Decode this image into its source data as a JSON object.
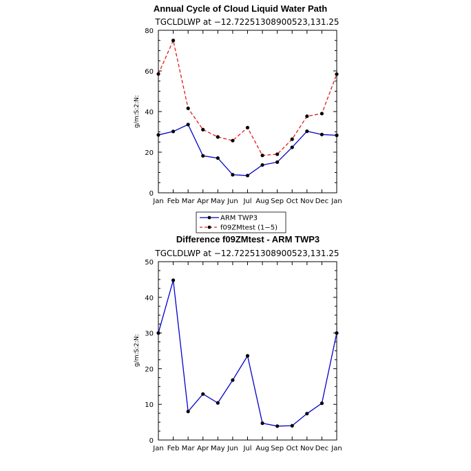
{
  "chart_data": [
    {
      "type": "line",
      "title": "Annual Cycle of Cloud Liquid Water Path",
      "subtitle": "TGCLDLWP  at  −12.72251308900523,131.25",
      "xlabel": "",
      "ylabel": "g/m:S:2:N:",
      "ylim": [
        0,
        80
      ],
      "yticks": [
        0,
        20,
        40,
        60,
        80
      ],
      "categories": [
        "Jan",
        "Feb",
        "Mar",
        "Apr",
        "May",
        "Jun",
        "Jul",
        "Aug",
        "Sep",
        "Oct",
        "Nov",
        "Dec",
        "Jan"
      ],
      "series": [
        {
          "name": "ARM TWP3",
          "color": "#0000cc",
          "dash": "solid",
          "values": [
            28.5,
            30.2,
            33.6,
            18.2,
            17.1,
            8.9,
            8.5,
            13.7,
            15.1,
            22.4,
            30.3,
            28.7,
            28.3
          ]
        },
        {
          "name": "f09ZMtest (1−5)",
          "color": "#e31a1a",
          "dash": "dashed",
          "values": [
            58.5,
            75.0,
            41.6,
            31.1,
            27.5,
            25.7,
            32.1,
            18.4,
            19.0,
            26.4,
            37.7,
            39.0,
            58.4
          ]
        }
      ]
    },
    {
      "type": "line",
      "title": "Difference f09ZMtest - ARM TWP3",
      "subtitle": "TGCLDLWP  at  −12.72251308900523,131.25",
      "xlabel": "",
      "ylabel": "g/m:S:2:N:",
      "ylim": [
        0,
        50
      ],
      "yticks": [
        0,
        10,
        20,
        30,
        40,
        50
      ],
      "categories": [
        "Jan",
        "Feb",
        "Mar",
        "Apr",
        "May",
        "Jun",
        "Jul",
        "Aug",
        "Sep",
        "Oct",
        "Nov",
        "Dec",
        "Jan"
      ],
      "series": [
        {
          "name": "Difference",
          "color": "#0000cc",
          "dash": "solid",
          "values": [
            30.0,
            44.8,
            8.0,
            12.9,
            10.4,
            16.8,
            23.6,
            4.7,
            3.9,
            4.0,
            7.4,
            10.3,
            30.0
          ]
        }
      ]
    }
  ]
}
